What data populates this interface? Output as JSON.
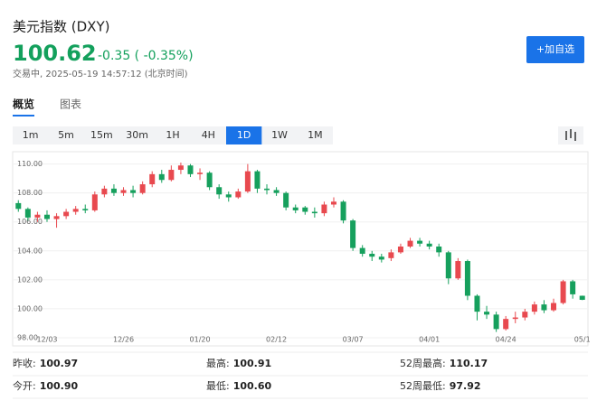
{
  "header": {
    "title": "美元指数 (DXY)",
    "price": "100.62",
    "change": "-0.35 ( -0.35%)",
    "status": "交易中, 2025-05-19 14:57:12 (北京时间)",
    "button": "+加自选"
  },
  "tabs": [
    "概览",
    "图表"
  ],
  "intervals": [
    "1m",
    "5m",
    "15m",
    "30m",
    "1H",
    "4H",
    "1D",
    "1W",
    "1M"
  ],
  "chart_data": {
    "type": "candlestick",
    "up_color": "#e8494f",
    "down_color": "#16a05d",
    "categories": [
      null,
      null,
      null,
      "12/03",
      null,
      null,
      null,
      null,
      null,
      null,
      null,
      "12/26",
      null,
      null,
      null,
      null,
      null,
      null,
      null,
      "01/20",
      null,
      null,
      null,
      null,
      null,
      null,
      null,
      "02/12",
      null,
      null,
      null,
      null,
      null,
      null,
      null,
      "03/07",
      null,
      null,
      null,
      null,
      null,
      null,
      null,
      "04/01",
      null,
      null,
      null,
      null,
      null,
      null,
      null,
      "04/24",
      null,
      null,
      null,
      null,
      null,
      null,
      null,
      "05/1"
    ],
    "open": [
      107.3,
      106.9,
      106.3,
      106.5,
      106.2,
      106.4,
      106.7,
      106.9,
      106.8,
      107.9,
      108.3,
      108.0,
      108.2,
      108.0,
      108.6,
      109.3,
      108.9,
      109.6,
      109.9,
      109.3,
      109.4,
      108.4,
      107.9,
      107.7,
      108.1,
      109.5,
      108.3,
      108.2,
      108.0,
      107.0,
      107.0,
      106.7,
      106.6,
      107.2,
      107.4,
      106.1,
      104.2,
      103.8,
      103.6,
      103.5,
      103.9,
      104.3,
      104.7,
      104.5,
      104.3,
      103.9,
      102.1,
      103.3,
      100.9,
      99.8,
      99.6,
      98.6,
      99.3,
      99.4,
      99.8,
      100.3,
      99.9,
      100.4,
      101.9,
      100.9
    ],
    "high": [
      107.5,
      107.0,
      106.7,
      106.8,
      106.6,
      106.9,
      107.1,
      107.2,
      108.1,
      108.5,
      108.6,
      108.4,
      108.5,
      108.8,
      109.5,
      109.6,
      109.9,
      110.1,
      110.0,
      109.7,
      109.5,
      108.6,
      108.1,
      108.3,
      110.0,
      109.6,
      108.6,
      108.4,
      108.1,
      107.2,
      107.1,
      107.0,
      107.4,
      107.7,
      107.5,
      106.2,
      104.4,
      104.0,
      103.8,
      104.1,
      104.5,
      104.9,
      104.9,
      104.7,
      104.5,
      104.0,
      103.5,
      103.4,
      101.0,
      100.2,
      99.8,
      99.5,
      99.8,
      100.0,
      100.5,
      100.6,
      100.7,
      102.0,
      102.0,
      100.91
    ],
    "low": [
      106.7,
      106.1,
      106.0,
      106.0,
      105.6,
      106.2,
      106.5,
      106.6,
      106.7,
      107.7,
      107.8,
      107.8,
      107.7,
      107.9,
      108.4,
      108.7,
      108.8,
      109.3,
      109.1,
      108.9,
      108.2,
      107.6,
      107.4,
      107.6,
      108.0,
      108.0,
      107.9,
      107.8,
      106.8,
      106.6,
      106.5,
      106.3,
      106.4,
      107.0,
      105.9,
      104.0,
      103.6,
      103.3,
      103.2,
      103.3,
      103.8,
      104.2,
      104.3,
      104.1,
      103.6,
      101.7,
      102.0,
      100.6,
      99.2,
      99.3,
      98.4,
      98.5,
      99.0,
      99.2,
      99.6,
      99.7,
      99.8,
      100.3,
      100.7,
      100.6
    ],
    "close": [
      106.9,
      106.3,
      106.5,
      106.2,
      106.4,
      106.7,
      106.9,
      106.8,
      107.9,
      108.3,
      108.0,
      108.2,
      108.0,
      108.6,
      109.3,
      108.9,
      109.6,
      109.9,
      109.3,
      109.4,
      108.4,
      107.9,
      107.7,
      108.1,
      109.5,
      108.3,
      108.2,
      108.0,
      107.0,
      106.8,
      106.7,
      106.6,
      107.2,
      107.4,
      106.1,
      104.2,
      103.8,
      103.6,
      103.4,
      103.9,
      104.3,
      104.7,
      104.5,
      104.3,
      103.9,
      102.1,
      103.3,
      100.9,
      99.8,
      99.6,
      98.6,
      99.3,
      99.4,
      99.8,
      100.3,
      99.9,
      100.4,
      101.9,
      101.0,
      100.62
    ],
    "ylim": [
      97.75,
      110.6
    ],
    "yticks": [
      {
        "value": 98,
        "label": "98.00"
      },
      {
        "value": 100,
        "label": "100.00"
      },
      {
        "value": 102,
        "label": "102.00"
      },
      {
        "value": 104,
        "label": "104.00"
      },
      {
        "value": 106,
        "label": "106.00"
      },
      {
        "value": 108,
        "label": "108.00"
      },
      {
        "value": 110,
        "label": "110.00"
      }
    ],
    "grid": true
  },
  "stats": [
    [
      {
        "label": "昨收:",
        "value": "100.97"
      },
      {
        "label": "最高:",
        "value": "100.91"
      },
      {
        "label": "52周最高:",
        "value": "110.17"
      }
    ],
    [
      {
        "label": "今开:",
        "value": "100.90"
      },
      {
        "label": "最低:",
        "value": "100.60"
      },
      {
        "label": "52周最低:",
        "value": "97.92"
      }
    ]
  ]
}
